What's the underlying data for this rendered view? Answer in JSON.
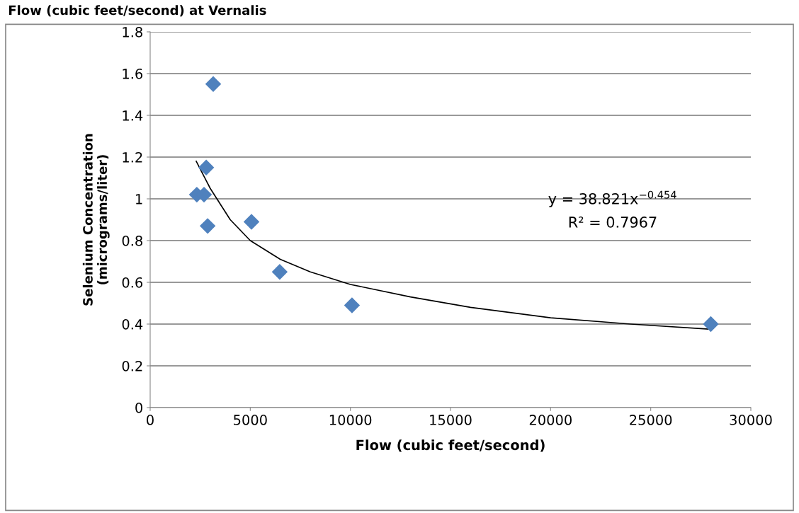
{
  "chart_data": {
    "type": "scatter",
    "title": "Flow (cubic feet/second) at Vernalis",
    "xlabel": "Flow (cubic feet/second)",
    "ylabel": "Selenium Concentration\n(micrograms/liter)",
    "series": [
      {
        "color": "#4f81bd",
        "marker": "diamond",
        "x": [
          3150,
          2800,
          2330,
          2690,
          2870,
          5060,
          6470,
          10080,
          28000
        ],
        "values": [
          1.55,
          1.15,
          1.02,
          1.02,
          0.87,
          0.89,
          0.65,
          0.49,
          0.4
        ]
      },
      {
        "type": "line",
        "color": "#000000",
        "marker": "none",
        "line_style": "solid",
        "x": [
          2300,
          3000,
          4000,
          5000,
          6500,
          8000,
          10000,
          13000,
          16000,
          20000,
          24000,
          28000
        ],
        "values": [
          1.18,
          1.05,
          0.9,
          0.8,
          0.71,
          0.65,
          0.59,
          0.53,
          0.48,
          0.43,
          0.4,
          0.375
        ]
      }
    ],
    "annotations": [
      "y = 38.821x$^{−0.454}$",
      "R² = 0.7967"
    ],
    "xlim": [
      0,
      30000
    ],
    "xticks": [
      0,
      5000,
      10000,
      15000,
      20000,
      25000,
      30000
    ],
    "ylim": [
      0,
      1.8
    ],
    "yticks": [
      0,
      0.2,
      0.4,
      0.6,
      0.8,
      1,
      1.2,
      1.4,
      1.6,
      1.8
    ],
    "grid": "y",
    "legend": false
  }
}
